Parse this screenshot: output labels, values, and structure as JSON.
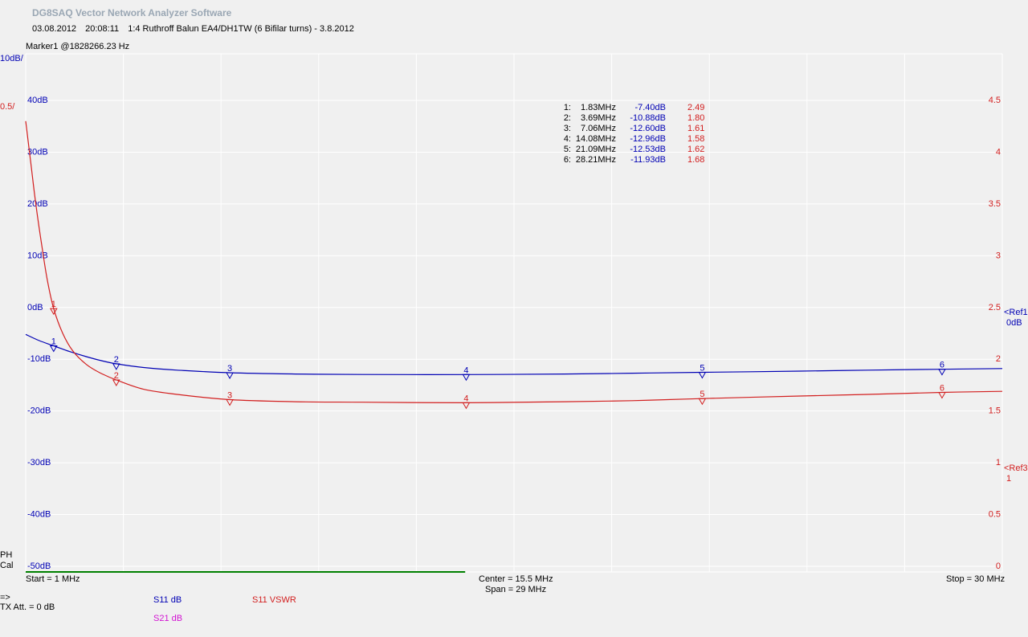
{
  "header": {
    "app_title": "DG8SAQ Vector Network Analyzer Software",
    "date": "03.08.2012",
    "time": "20:08:11",
    "description": "1:4 Ruthroff Balun EA4/DH1TW (6 Bifilar turns) - 3.8.2012"
  },
  "marker_info": "Marker1 @1828266.23 Hz",
  "left_scale": {
    "db_div": "10dB/",
    "vswr_div": "0.5/"
  },
  "marker_table": [
    {
      "n": "1:",
      "freq": "1.83MHz",
      "db": "-7.40dB",
      "vswr": "2.49"
    },
    {
      "n": "2:",
      "freq": "3.69MHz",
      "db": "-10.88dB",
      "vswr": "1.80"
    },
    {
      "n": "3:",
      "freq": "7.06MHz",
      "db": "-12.60dB",
      "vswr": "1.61"
    },
    {
      "n": "4:",
      "freq": "14.08MHz",
      "db": "-12.96dB",
      "vswr": "1.58"
    },
    {
      "n": "5:",
      "freq": "21.09MHz",
      "db": "-12.53dB",
      "vswr": "1.62"
    },
    {
      "n": "6:",
      "freq": "28.21MHz",
      "db": "-11.93dB",
      "vswr": "1.68"
    }
  ],
  "ref_labels": {
    "ref1": "<Ref1",
    "ref1_val": "0dB",
    "ref3": "<Ref3",
    "ref3_val": "1"
  },
  "bottom": {
    "start": "Start = 1 MHz",
    "center": "Center = 15.5 MHz",
    "span": "Span = 29 MHz",
    "stop": "Stop = 30 MHz",
    "ph": "PH",
    "cal": "Cal",
    "arrow": "=>",
    "tx_att": "TX Att.   = 0 dB",
    "trace1": "S11  dB",
    "trace2": "S11  VSWR",
    "trace3": "S21  dB"
  },
  "colors": {
    "s11_db": "#0000b4",
    "s11_vswr": "#d21e1e",
    "s21_db": "#d214d2",
    "grid": "#ffffff",
    "progress": "#008000"
  },
  "chart_data": {
    "type": "line",
    "x_unit": "MHz",
    "xlim": [
      1,
      30
    ],
    "x_grid_divisions": 10,
    "y_left": {
      "ticks": [
        "40dB",
        "30dB",
        "20dB",
        "10dB",
        "0dB",
        "-10dB",
        "-20dB",
        "-30dB",
        "-40dB",
        "-50dB"
      ],
      "lim": [
        -50,
        40
      ]
    },
    "y_right": {
      "ticks": [
        "4.5",
        "4",
        "3.5",
        "3",
        "2.5",
        "2",
        "1.5",
        "1",
        "0.5",
        "0"
      ],
      "lim": [
        0,
        4.5
      ]
    },
    "series": [
      {
        "name": "S11  dB",
        "axis": "left",
        "x": [
          1,
          1.4,
          1.83,
          2.3,
          2.8,
          3.2,
          3.69,
          4.5,
          5.5,
          7.06,
          9,
          11,
          14.08,
          17,
          19,
          21.09,
          24,
          26,
          28.21,
          30
        ],
        "y": [
          -5.2,
          -6.4,
          -7.4,
          -8.5,
          -9.5,
          -10.2,
          -10.88,
          -11.6,
          -12.1,
          -12.6,
          -12.85,
          -12.95,
          -12.96,
          -12.85,
          -12.7,
          -12.53,
          -12.3,
          -12.1,
          -11.93,
          -11.8
        ]
      },
      {
        "name": "S11  VSWR",
        "axis": "right",
        "x": [
          1,
          1.15,
          1.3,
          1.5,
          1.65,
          1.83,
          2.1,
          2.4,
          2.8,
          3.2,
          3.69,
          4.5,
          5.5,
          7.06,
          9,
          11,
          14.08,
          17,
          19,
          21.09,
          24,
          26,
          28.21,
          30
        ],
        "y": [
          4.3,
          3.9,
          3.5,
          3.05,
          2.75,
          2.49,
          2.25,
          2.08,
          1.95,
          1.87,
          1.8,
          1.71,
          1.66,
          1.61,
          1.59,
          1.585,
          1.58,
          1.59,
          1.6,
          1.62,
          1.645,
          1.66,
          1.68,
          1.69
        ]
      }
    ],
    "markers": [
      {
        "label": "1",
        "x": 1.83,
        "db": -7.4,
        "vswr": 2.49
      },
      {
        "label": "2",
        "x": 3.69,
        "db": -10.88,
        "vswr": 1.8
      },
      {
        "label": "3",
        "x": 7.06,
        "db": -12.6,
        "vswr": 1.61
      },
      {
        "label": "4",
        "x": 14.08,
        "db": -12.96,
        "vswr": 1.58
      },
      {
        "label": "5",
        "x": 21.09,
        "db": -12.53,
        "vswr": 1.62
      },
      {
        "label": "6",
        "x": 28.21,
        "db": -11.93,
        "vswr": 1.68
      }
    ],
    "progress_fraction": 0.45
  }
}
